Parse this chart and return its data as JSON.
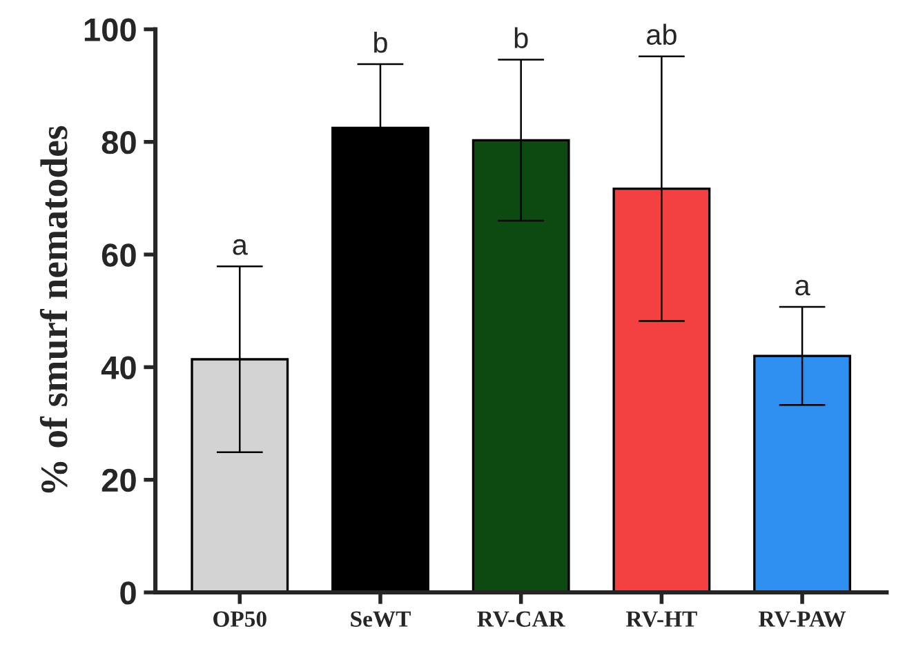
{
  "chart_data": {
    "type": "bar",
    "ylabel": "% of smurf nematodes",
    "categories": [
      "OP50",
      "SeWT",
      "RV-CAR",
      "RV-HT",
      "RV-PAW"
    ],
    "values": [
      41.4,
      82.5,
      80.3,
      71.7,
      42.0
    ],
    "errors": [
      16.5,
      11.3,
      14.3,
      23.5,
      8.7
    ],
    "colors": [
      "#d3d3d3",
      "#000000",
      "#0d4a12",
      "#f44040",
      "#2f8ff0"
    ],
    "ylim": [
      0,
      100
    ],
    "yticks": [
      0,
      20,
      40,
      60,
      80,
      100
    ],
    "grid": false,
    "annotations": [
      {
        "text": "a",
        "x": "OP50",
        "y": 57.9
      },
      {
        "text": "b",
        "x": "SeWT",
        "y": 93.8
      },
      {
        "text": "b",
        "x": "RV-CAR",
        "y": 94.6
      },
      {
        "text": "ab",
        "x": "RV-HT",
        "y": 95.2
      },
      {
        "text": "a",
        "x": "RV-PAW",
        "y": 50.7
      }
    ]
  }
}
